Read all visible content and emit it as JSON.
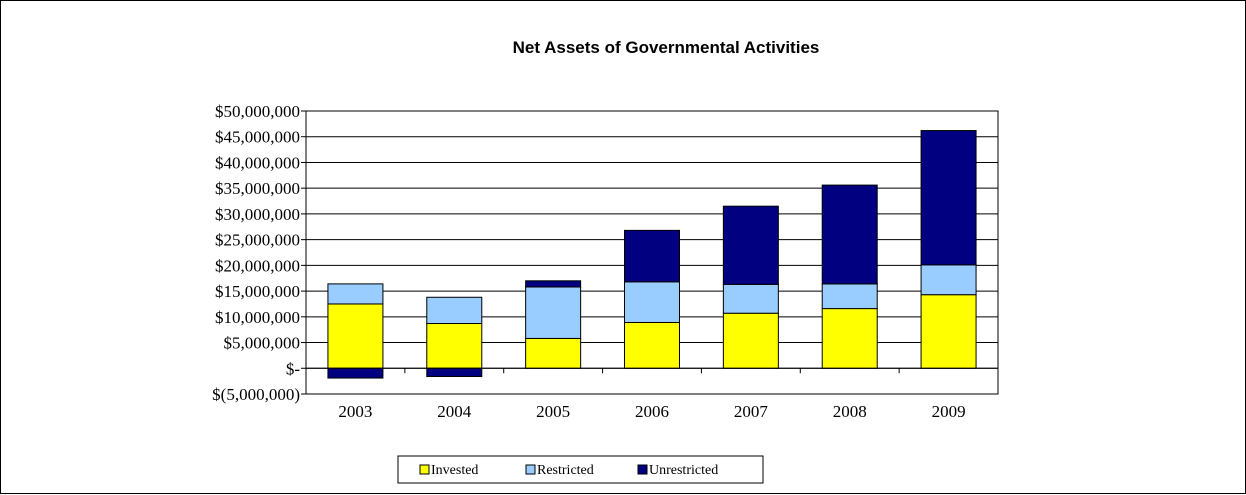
{
  "chart_data": {
    "type": "bar",
    "stacked": true,
    "title": "Net Assets of Governmental Activities",
    "xlabel": "",
    "ylabel": "",
    "categories": [
      "2003",
      "2004",
      "2005",
      "2006",
      "2007",
      "2008",
      "2009"
    ],
    "series": [
      {
        "name": "Invested",
        "color": "#FFFF00",
        "values": [
          12500000,
          8700000,
          5800000,
          8900000,
          10700000,
          11600000,
          14300000
        ]
      },
      {
        "name": "Restricted",
        "color": "#99CCFF",
        "values": [
          3900000,
          5100000,
          10000000,
          7900000,
          5600000,
          4800000,
          5800000
        ]
      },
      {
        "name": "Unrestricted",
        "color": "#000080",
        "values": [
          -1900000,
          -1600000,
          1200000,
          10000000,
          15200000,
          19200000,
          26100000
        ]
      }
    ],
    "ylim": [
      -5000000,
      50000000
    ],
    "yticks": [
      -5000000,
      0,
      5000000,
      10000000,
      15000000,
      20000000,
      25000000,
      30000000,
      35000000,
      40000000,
      45000000,
      50000000
    ],
    "ytick_labels": [
      "$(5,000,000)",
      "$-",
      "$5,000,000",
      "$10,000,000",
      "$15,000,000",
      "$20,000,000",
      "$25,000,000",
      "$30,000,000",
      "$35,000,000",
      "$40,000,000",
      "$45,000,000",
      "$50,000,000"
    ],
    "grid": true,
    "legend_position": "bottom"
  }
}
